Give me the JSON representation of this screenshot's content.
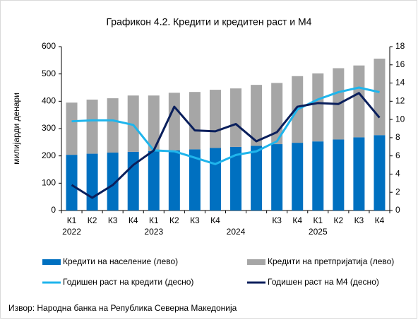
{
  "chart_data": {
    "type": "combo",
    "title": "Графикон 4.2. Кредити и кредитен раст и М4",
    "ylabel": "милијарди денари",
    "categories": [
      "К1",
      "К2",
      "К3",
      "К4",
      "К1",
      "К2",
      "К3",
      "К4",
      null,
      null,
      "К3",
      "К4",
      "К1",
      "К2",
      "К3",
      "К4"
    ],
    "year_categories": [
      "2022",
      null,
      null,
      null,
      "2023",
      null,
      null,
      null,
      "2024",
      null,
      null,
      null,
      "2025",
      null,
      null,
      null
    ],
    "ylim": [
      0,
      600
    ],
    "yticks": [
      0,
      100,
      200,
      300,
      400,
      500,
      600
    ],
    "y2lim": [
      0,
      18
    ],
    "y2ticks": [
      0,
      2,
      4,
      6,
      8,
      10,
      12,
      14,
      16,
      18
    ],
    "stacked": true,
    "series": [
      {
        "name": "Кредити на население (лево)",
        "type": "bar",
        "color": "#0070c0",
        "values": [
          204,
          208,
          212,
          215,
          218,
          220,
          224,
          229,
          233,
          237,
          243,
          248,
          253,
          260,
          268,
          276
        ]
      },
      {
        "name": "Кредити на претпријатија (лево)",
        "type": "bar",
        "color": "#a6a6a6",
        "values": [
          191,
          198,
          199,
          206,
          203,
          211,
          210,
          213,
          214,
          223,
          224,
          244,
          249,
          261,
          263,
          280
        ]
      },
      {
        "name": "Годишен раст на кредити (десно)",
        "type": "line",
        "axis": "y2",
        "color": "#1fb5ec",
        "values": [
          9.8,
          9.9,
          9.9,
          9.4,
          6.6,
          6.5,
          5.8,
          5.1,
          6.1,
          6.5,
          7.6,
          11.1,
          12.2,
          13.0,
          13.5,
          13.0
        ]
      },
      {
        "name": "Годишен раст на М4 (десно)",
        "type": "line",
        "axis": "y2",
        "color": "#0a1f5c",
        "values": [
          2.8,
          1.4,
          2.8,
          5.0,
          6.6,
          11.4,
          8.8,
          8.7,
          9.5,
          7.6,
          8.6,
          11.4,
          11.8,
          11.7,
          12.9,
          10.2
        ]
      }
    ],
    "source": "Извор: Народна банка на Република Северна Македонија"
  }
}
